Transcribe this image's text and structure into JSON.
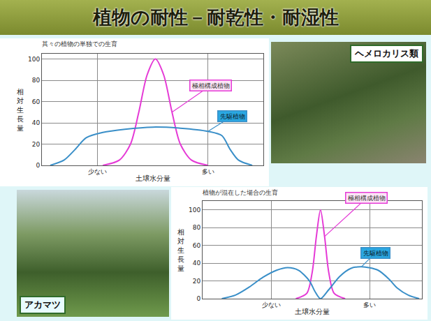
{
  "title": "植物の耐性－耐乾性・耐湿性",
  "photos": [
    {
      "label": "ヘメロカリス類"
    },
    {
      "label": "アカマツ"
    }
  ],
  "chart_data": [
    {
      "type": "line",
      "title": "其々の植物の単独での生育",
      "x_label": "土壌水分量",
      "y_label": "相対生長量",
      "xlim": [
        0,
        8
      ],
      "xticks": [
        {
          "value": 2,
          "label": "少ない"
        },
        {
          "value": 6,
          "label": "多い"
        }
      ],
      "ylim": [
        0,
        105
      ],
      "yticks": [
        0,
        20,
        40,
        60,
        80,
        100
      ],
      "grid": true,
      "series": [
        {
          "name": "極相構成植物",
          "color": "#e53ad6",
          "x": [
            2.2,
            2.8,
            3.2,
            3.5,
            3.8,
            4.1,
            4.4,
            4.7,
            5.0,
            5.4,
            6.0
          ],
          "values": [
            0,
            5,
            20,
            50,
            85,
            100,
            85,
            50,
            20,
            5,
            0
          ]
        },
        {
          "name": "先駆植物",
          "color": "#3a8fc8",
          "x": [
            0.3,
            0.8,
            1.2,
            1.6,
            2.2,
            3.0,
            4.0,
            5.0,
            6.0,
            6.5,
            6.8,
            7.1,
            7.6
          ],
          "values": [
            0,
            5,
            15,
            26,
            31,
            34,
            36,
            35,
            32,
            28,
            15,
            5,
            0
          ]
        }
      ]
    },
    {
      "type": "line",
      "title": "植物が混在した場合の生育",
      "x_label": "土壌水分量",
      "y_label": "相対生長量",
      "xlim": [
        0,
        8
      ],
      "xticks": [
        {
          "value": 2.5,
          "label": "少ない"
        },
        {
          "value": 6.1,
          "label": "多い"
        }
      ],
      "ylim": [
        0,
        110
      ],
      "yticks": [
        0,
        20,
        40,
        60,
        80,
        100
      ],
      "grid": true,
      "series": [
        {
          "name": "極相構成植物",
          "color": "#e53ad6",
          "x": [
            3.4,
            3.8,
            4.0,
            4.15,
            4.3,
            4.45,
            4.6,
            4.8,
            5.2
          ],
          "values": [
            0,
            6,
            30,
            70,
            100,
            70,
            30,
            6,
            0
          ]
        },
        {
          "name": "先駆植物",
          "color": "#3a8fc8",
          "x": [
            0.7,
            1.2,
            1.7,
            2.2,
            2.7,
            3.1,
            3.5,
            3.9,
            4.1,
            4.3,
            4.6,
            5.0,
            5.4,
            5.8,
            6.4,
            6.8,
            7.1,
            7.5,
            7.9
          ],
          "values": [
            0,
            4,
            13,
            24,
            32,
            35,
            32,
            20,
            8,
            0,
            10,
            25,
            34,
            36,
            32,
            22,
            12,
            4,
            0
          ]
        }
      ]
    }
  ]
}
